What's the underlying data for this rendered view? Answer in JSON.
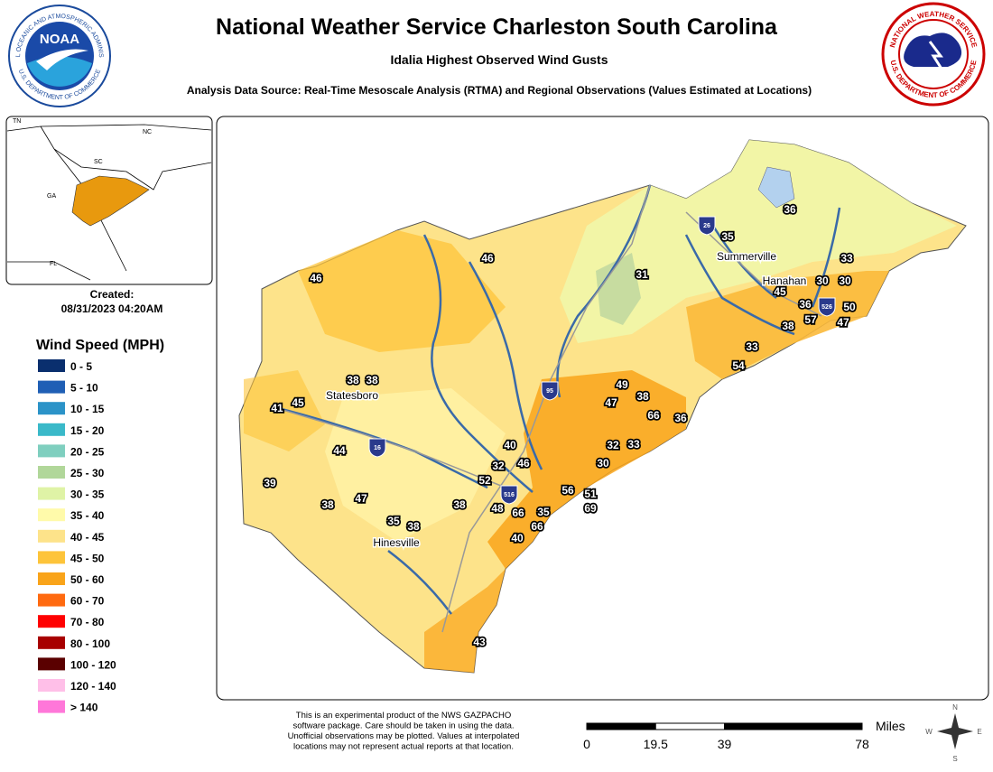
{
  "header": {
    "title": "National Weather Service Charleston South Carolina",
    "subtitle": "Idalia Highest Observed Wind Gusts",
    "source": "Analysis Data Source: Real-Time Mesoscale Analysis (RTMA) and Regional Observations (Values Estimated at Locations)"
  },
  "logos": {
    "noaa": {
      "name": "NOAA",
      "ring_top": "NATIONAL OCEANIC AND ATMOSPHERIC ADMINISTRATION",
      "ring_bottom": "U.S. DEPARTMENT OF COMMERCE"
    },
    "nws": {
      "ring_top": "NATIONAL WEATHER SERVICE",
      "ring_bottom": "U.S. DEPARTMENT OF COMMERCE"
    }
  },
  "inset": {
    "labels": [
      "TN",
      "NC",
      "SC",
      "GA",
      "FL"
    ]
  },
  "created": {
    "label": "Created:",
    "date": "08/31/2023 04:20AM"
  },
  "legend": {
    "title": "Wind Speed (MPH)",
    "items": [
      {
        "label": "0 - 5",
        "color": "#0a2f6e"
      },
      {
        "label": "5 - 10",
        "color": "#1f5fb5"
      },
      {
        "label": "10 - 15",
        "color": "#2b93c8"
      },
      {
        "label": "15 - 20",
        "color": "#3ab9c9"
      },
      {
        "label": "20 - 25",
        "color": "#7fcfbf"
      },
      {
        "label": "25 - 30",
        "color": "#b1d79a"
      },
      {
        "label": "30 - 35",
        "color": "#dff3a6"
      },
      {
        "label": "35 - 40",
        "color": "#fffaaa"
      },
      {
        "label": "40 - 45",
        "color": "#fde38a"
      },
      {
        "label": "45 - 50",
        "color": "#fdc43a"
      },
      {
        "label": "50 - 60",
        "color": "#f9a41a"
      },
      {
        "label": "60 - 70",
        "color": "#ff6a10"
      },
      {
        "label": "70 - 80",
        "color": "#ff0000"
      },
      {
        "label": "80 - 100",
        "color": "#a80000"
      },
      {
        "label": "100 - 120",
        "color": "#5a0000"
      },
      {
        "label": "120 - 140",
        "color": "#ffbfe8"
      },
      {
        "label": "> 140",
        "color": "#ff77d9"
      }
    ]
  },
  "map": {
    "cities": [
      "Summerville",
      "Hanahan",
      "Statesboro",
      "Hinesville"
    ],
    "highways": [
      "26",
      "526",
      "95",
      "16",
      "516"
    ],
    "stations": [
      36,
      35,
      33,
      30,
      30,
      45,
      36,
      50,
      57,
      47,
      38,
      33,
      54,
      31,
      46,
      46,
      49,
      38,
      47,
      66,
      36,
      32,
      33,
      30,
      40,
      46,
      32,
      52,
      56,
      51,
      69,
      48,
      66,
      35,
      66,
      40,
      38,
      38,
      38,
      41,
      45,
      44,
      39,
      38,
      47,
      35,
      38,
      43
    ]
  },
  "scale": {
    "ticks": [
      0,
      19.5,
      39,
      78
    ],
    "unit": "Miles"
  },
  "compass": [
    "N",
    "E",
    "S",
    "W"
  ],
  "disclaimer": [
    "This is an experimental product of the NWS GAZPACHO",
    "software package. Care should be taken in using the data.",
    "Unofficial observations may be plotted. Values at interpolated",
    "locations may not represent actual reports at that location."
  ]
}
